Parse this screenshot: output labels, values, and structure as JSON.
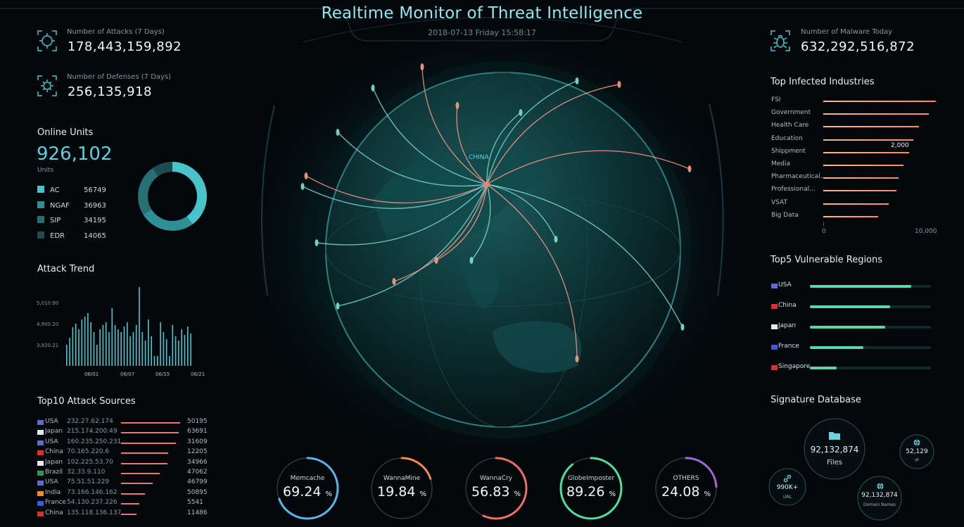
{
  "header": {
    "title": "Realtime Monitor of Threat Intelligence",
    "datetime": "2018-07-13 Friday 15:58:17"
  },
  "stats": {
    "attacks_label": "Number of Attacks (7 Days)",
    "attacks_value": "178,443,159,892",
    "defenses_label": "Number of Defenses (7 Days)",
    "defenses_value": "256,135,918",
    "malware_label": "Number of Malware Today",
    "malware_value": "632,292,516,872"
  },
  "online_units": {
    "title": "Online Units",
    "total": "926,102",
    "unit_label": "Units",
    "items": [
      {
        "name": "AC",
        "value": 56749,
        "color": "#48c3cc"
      },
      {
        "name": "NGAF",
        "value": 36963,
        "color": "#2f8f97"
      },
      {
        "name": "SIP",
        "value": 34195,
        "color": "#256f75"
      },
      {
        "name": "EDR",
        "value": 14065,
        "color": "#1c4b50"
      }
    ]
  },
  "attack_trend": {
    "title": "Attack Trend",
    "y_ticks": [
      "5,010.90",
      "4,900.20",
      "3,920.21"
    ],
    "x_ticks": [
      "06/01",
      "06/07",
      "06/15",
      "06/21"
    ],
    "values": [
      30,
      40,
      55,
      60,
      52,
      66,
      70,
      75,
      62,
      48,
      30,
      52,
      58,
      62,
      48,
      82,
      58,
      52,
      48,
      56,
      62,
      42,
      48,
      58,
      112,
      48,
      36,
      66,
      42,
      14,
      14,
      62,
      48,
      38,
      14,
      58,
      42,
      36,
      52,
      44,
      56,
      46
    ]
  },
  "attack_sources": {
    "title": "Top10 Attack Sources",
    "rows": [
      {
        "country": "USA",
        "ip": "232.27.62.174",
        "count": "50195",
        "ratio": 1.0,
        "flag_color": "#5b6fd0"
      },
      {
        "country": "Japan",
        "ip": "215.174.200.49",
        "count": "63691",
        "ratio": 0.98,
        "flag_color": "#e8e8e8"
      },
      {
        "country": "USA",
        "ip": "160.235.250.231",
        "count": "31609",
        "ratio": 0.93,
        "flag_color": "#5b6fd0"
      },
      {
        "country": "China",
        "ip": "70.165.220.6",
        "count": "12205",
        "ratio": 0.8,
        "flag_color": "#d8322c"
      },
      {
        "country": "Japan",
        "ip": "102.225.53.70",
        "count": "34966",
        "ratio": 0.78,
        "flag_color": "#e8e8e8"
      },
      {
        "country": "Brazil",
        "ip": "32.33.9.110",
        "count": "47062",
        "ratio": 0.66,
        "flag_color": "#2e9a46"
      },
      {
        "country": "USA",
        "ip": "75.51.51.229",
        "count": "46799",
        "ratio": 0.53,
        "flag_color": "#5b6fd0"
      },
      {
        "country": "India",
        "ip": "73.166.146.162",
        "count": "50895",
        "ratio": 0.41,
        "flag_color": "#f08a2c"
      },
      {
        "country": "France",
        "ip": "54.130.237.226",
        "count": "5541",
        "ratio": 0.31,
        "flag_color": "#3d5bd6"
      },
      {
        "country": "China",
        "ip": "135.118.136.137",
        "count": "11486",
        "ratio": 0.26,
        "flag_color": "#d8322c"
      }
    ]
  },
  "globe": {
    "center_label": "CHINA"
  },
  "gauges": [
    {
      "name": "Memcache",
      "value": "69.24",
      "ratio": 0.6924,
      "color": "#5ab6e8"
    },
    {
      "name": "WannaMine",
      "value": "19.84",
      "ratio": 0.1984,
      "color": "#f2894e"
    },
    {
      "name": "WannaCry",
      "value": "56.83",
      "ratio": 0.5683,
      "color": "#ef6f6a"
    },
    {
      "name": "GlobeImposter",
      "value": "89.26",
      "ratio": 0.8926,
      "color": "#4ee09e"
    },
    {
      "name": "OTHERS",
      "value": "24.08",
      "ratio": 0.2408,
      "color": "#a06ad8"
    }
  ],
  "percent_sign": "%",
  "industries": {
    "title": "Top Infected Industries",
    "axis_min": "0",
    "axis_max": "10,000",
    "tooltip": "2,000",
    "rows": [
      {
        "name": "FSI",
        "ratio": 1.0
      },
      {
        "name": "Government",
        "ratio": 0.94
      },
      {
        "name": "Health Care",
        "ratio": 0.85
      },
      {
        "name": "Education",
        "ratio": 0.8
      },
      {
        "name": "Shippment",
        "ratio": 0.76
      },
      {
        "name": "Media",
        "ratio": 0.71
      },
      {
        "name": "Pharmaceutical...",
        "ratio": 0.67
      },
      {
        "name": "Professional...",
        "ratio": 0.65
      },
      {
        "name": "VSAT",
        "ratio": 0.58
      },
      {
        "name": "Big Data",
        "ratio": 0.49
      }
    ]
  },
  "regions": {
    "title": "Top5 Vulnerable Regions",
    "rows": [
      {
        "name": "USA",
        "ratio": 0.84,
        "flag_color": "#5b6fd0"
      },
      {
        "name": "China",
        "ratio": 0.66,
        "flag_color": "#d8322c"
      },
      {
        "name": "Japan",
        "ratio": 0.62,
        "flag_color": "#e8e8e8"
      },
      {
        "name": "France",
        "ratio": 0.44,
        "flag_color": "#3d5bd6"
      },
      {
        "name": "Singapore",
        "ratio": 0.22,
        "flag_color": "#d8322c"
      }
    ]
  },
  "signature": {
    "title": "Signature Database",
    "files_value": "92,132,874",
    "files_label": "Files",
    "ip_value": "52,129",
    "ip_label": "IP",
    "url_value": "990K+",
    "url_label": "URL",
    "domain_value": "92,132,874",
    "domain_label": "Domain Names"
  }
}
